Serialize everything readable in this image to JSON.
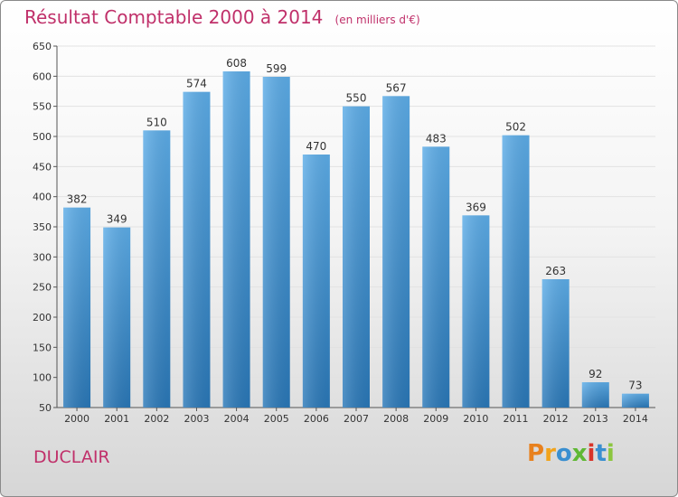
{
  "title": "Résultat Comptable 2000 à 2014",
  "subtitle": "(en milliers d'€)",
  "commune": "DUCLAIR",
  "logo": {
    "text": "Proxiti",
    "letters": [
      "P",
      "r",
      "o",
      "x",
      "i",
      "t",
      "i"
    ],
    "colors": [
      "#e8811e",
      "#f2a31b",
      "#3a8fd0",
      "#5fb834",
      "#d8342a",
      "#3a8fd0",
      "#8cc63f"
    ]
  },
  "colors": {
    "title": "#c0306a",
    "bar_top": "#5dade8",
    "bar_bottom": "#2a78b8",
    "grid": "#e2e2e2"
  },
  "chart_data": {
    "type": "bar",
    "title": "Résultat Comptable 2000 à 2014",
    "subtitle": "(en milliers d'€)",
    "xlabel": "",
    "ylabel": "",
    "categories": [
      "2000",
      "2001",
      "2002",
      "2003",
      "2004",
      "2005",
      "2006",
      "2007",
      "2008",
      "2009",
      "2010",
      "2011",
      "2012",
      "2013",
      "2014"
    ],
    "values": [
      382,
      349,
      510,
      574,
      608,
      599,
      470,
      550,
      567,
      483,
      369,
      502,
      263,
      92,
      73
    ],
    "ylim": [
      50,
      650
    ],
    "yticks": [
      50,
      100,
      150,
      200,
      250,
      300,
      350,
      400,
      450,
      500,
      550,
      600,
      650
    ],
    "grid": true,
    "data_labels": true,
    "legend": "none"
  }
}
